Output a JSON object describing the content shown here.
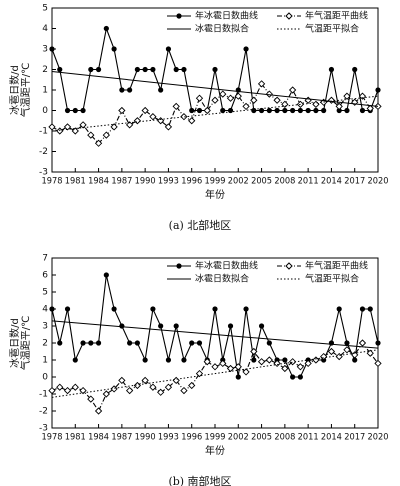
{
  "chart_data": [
    {
      "type": "line",
      "caption": "(a) 北部地区",
      "xlabel": "年份",
      "ylabel": [
        "冰雹日数/d",
        "气温距平/℃"
      ],
      "xlim": [
        1978,
        2020
      ],
      "xticks": [
        1978,
        1981,
        1984,
        1987,
        1990,
        1993,
        1996,
        1999,
        2002,
        2005,
        2008,
        2011,
        2014,
        2017,
        2020
      ],
      "ylim": [
        -3,
        5
      ],
      "yticks": [
        -3,
        -2,
        -1,
        0,
        1,
        2,
        3,
        4,
        5
      ],
      "x": [
        1978,
        1979,
        1980,
        1981,
        1982,
        1983,
        1984,
        1985,
        1986,
        1987,
        1988,
        1989,
        1990,
        1991,
        1992,
        1993,
        1994,
        1995,
        1996,
        1997,
        1998,
        1999,
        2000,
        2001,
        2002,
        2003,
        2004,
        2005,
        2006,
        2007,
        2008,
        2009,
        2010,
        2011,
        2012,
        2013,
        2014,
        2015,
        2016,
        2017,
        2018,
        2019,
        2020
      ],
      "series": [
        {
          "name": "年冰雹日数曲线",
          "color": "#000000",
          "dash": "solid",
          "marker": "dot",
          "values": [
            3,
            2,
            0,
            0,
            0,
            2,
            2,
            4,
            3,
            1,
            1,
            2,
            2,
            2,
            1,
            3,
            2,
            2,
            0,
            0,
            0,
            2,
            0,
            0,
            1,
            3,
            0,
            0,
            0,
            0,
            0,
            0,
            0,
            0,
            0,
            0,
            2,
            0,
            0,
            2,
            0,
            0,
            1
          ]
        },
        {
          "name": "年气温距平曲线",
          "color": "#000000",
          "dash": "dashdot",
          "marker": "diamond",
          "values": [
            -0.8,
            -1,
            -0.8,
            -1,
            -0.7,
            -1.2,
            -1.6,
            -1.2,
            -0.8,
            0,
            -0.7,
            -0.5,
            0,
            -0.3,
            -0.5,
            -0.8,
            0.2,
            -0.3,
            -0.5,
            0.6,
            0,
            0.5,
            0.8,
            0.6,
            0.7,
            0.2,
            0.5,
            1.3,
            0.8,
            0.5,
            0.3,
            1,
            0.3,
            0.5,
            0.3,
            0.4,
            0.5,
            0.2,
            0.7,
            0.4,
            0.7,
            0.1,
            0.2
          ]
        },
        {
          "name": "冰雹日数拟合",
          "color": "#000000",
          "dash": "solid",
          "marker": "none",
          "x": [
            1978,
            2020
          ],
          "values": [
            1.9,
            0.2
          ]
        },
        {
          "name": "气温距平拟合",
          "color": "#000000",
          "dash": "dotted",
          "marker": "none",
          "x": [
            1978,
            2020
          ],
          "values": [
            -1,
            0.7
          ]
        }
      ]
    },
    {
      "type": "line",
      "caption": "(b) 南部地区",
      "xlabel": "年份",
      "ylabel": [
        "冰雹日数/d",
        "气温距平/℃"
      ],
      "xlim": [
        1978,
        2020
      ],
      "xticks": [
        1978,
        1981,
        1984,
        1987,
        1990,
        1993,
        1996,
        1999,
        2002,
        2005,
        2008,
        2011,
        2014,
        2017,
        2020
      ],
      "ylim": [
        -3,
        7
      ],
      "yticks": [
        -3,
        -2,
        -1,
        0,
        1,
        2,
        3,
        4,
        5,
        6,
        7
      ],
      "x": [
        1978,
        1979,
        1980,
        1981,
        1982,
        1983,
        1984,
        1985,
        1986,
        1987,
        1988,
        1989,
        1990,
        1991,
        1992,
        1993,
        1994,
        1995,
        1996,
        1997,
        1998,
        1999,
        2000,
        2001,
        2002,
        2003,
        2004,
        2005,
        2006,
        2007,
        2008,
        2009,
        2010,
        2011,
        2012,
        2013,
        2014,
        2015,
        2016,
        2017,
        2018,
        2019,
        2020
      ],
      "series": [
        {
          "name": "年冰雹日数曲线",
          "color": "#000000",
          "dash": "solid",
          "marker": "dot",
          "values": [
            4,
            2,
            4,
            1,
            2,
            2,
            2,
            6,
            4,
            3,
            2,
            2,
            1,
            4,
            3,
            1,
            3,
            1,
            2,
            2,
            1,
            4,
            1,
            3,
            0,
            4,
            1,
            3,
            2,
            1,
            1,
            0,
            0,
            1,
            1,
            1,
            2,
            4,
            2,
            1,
            4,
            4,
            2
          ]
        },
        {
          "name": "年气温距平曲线",
          "color": "#000000",
          "dash": "dashdot",
          "marker": "diamond",
          "values": [
            -0.8,
            -0.6,
            -0.8,
            -0.6,
            -0.8,
            -1.3,
            -2,
            -1,
            -0.7,
            -0.2,
            -0.8,
            -0.5,
            -0.2,
            -0.6,
            -0.9,
            -0.6,
            -0.2,
            -0.8,
            -0.5,
            0.2,
            0.9,
            0.6,
            0.8,
            0.5,
            0.6,
            0.3,
            1.5,
            0.9,
            1,
            0.8,
            0.5,
            0.9,
            0.6,
            0.8,
            1,
            1.2,
            1.5,
            1.2,
            1.6,
            1.3,
            2,
            1.4,
            0.8
          ]
        },
        {
          "name": "冰雹日数拟合",
          "color": "#000000",
          "dash": "solid",
          "marker": "none",
          "x": [
            1978,
            2020
          ],
          "values": [
            3.3,
            1.7
          ]
        },
        {
          "name": "气温距平拟合",
          "color": "#000000",
          "dash": "dotted",
          "marker": "none",
          "x": [
            1978,
            2020
          ],
          "values": [
            -1.2,
            1.6
          ]
        }
      ]
    }
  ]
}
